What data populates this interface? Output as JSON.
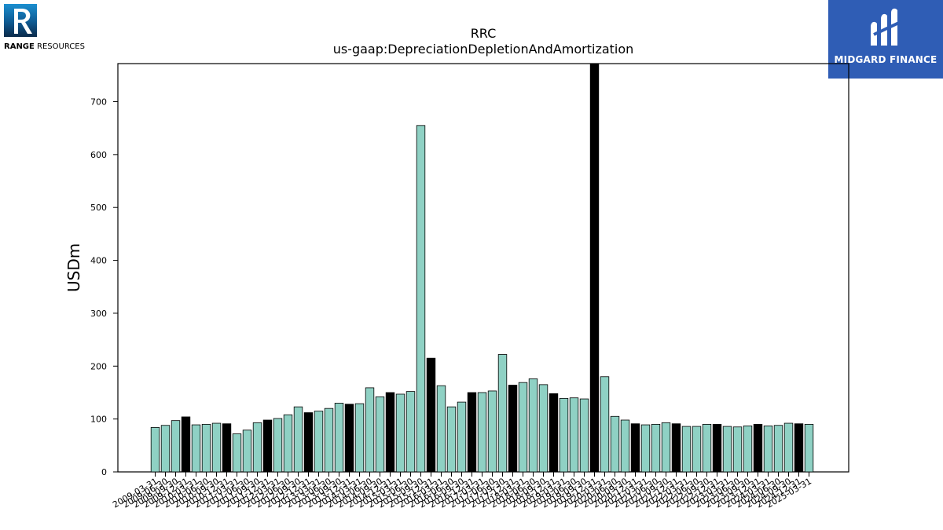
{
  "logos": {
    "left_company_bold": "RANGE",
    "left_company_rest": " RESOURCES",
    "right_brand": "MIDGARD FINANCE"
  },
  "chart_data": {
    "type": "bar",
    "title": "RRC",
    "subtitle": "us-gaap:DepreciationDepletionAndAmortization",
    "xlabel": "",
    "ylabel": "USDm",
    "ylim": [
      0,
      772
    ],
    "yticks": [
      0,
      100,
      200,
      300,
      400,
      500,
      600,
      700
    ],
    "grid": false,
    "colors": {
      "quarter": "#8fd1c4",
      "annual": "#000000",
      "edge": "#000000"
    },
    "categories": [
      "2009-03-31",
      "2009-06-30",
      "2009-09-30",
      "2009-12-31",
      "2010-03-31",
      "2010-06-30",
      "2010-09-30",
      "2010-12-31",
      "2011-03-31",
      "2011-06-30",
      "2011-09-30",
      "2011-12-31",
      "2012-03-31",
      "2012-06-30",
      "2012-09-30",
      "2012-12-31",
      "2013-03-31",
      "2013-06-30",
      "2013-09-30",
      "2013-12-31",
      "2014-03-31",
      "2014-06-30",
      "2014-09-30",
      "2014-12-31",
      "2015-03-31",
      "2015-06-30",
      "2015-09-30",
      "2015-12-31",
      "2016-03-31",
      "2016-06-30",
      "2016-09-30",
      "2016-12-31",
      "2017-03-31",
      "2017-06-30",
      "2017-09-30",
      "2017-12-31",
      "2018-03-31",
      "2018-06-30",
      "2018-09-30",
      "2018-12-31",
      "2019-03-31",
      "2019-06-30",
      "2019-09-30",
      "2019-12-31",
      "2020-03-31",
      "2020-06-30",
      "2020-09-30",
      "2020-12-31",
      "2021-03-31",
      "2021-06-30",
      "2021-09-30",
      "2021-12-31",
      "2022-03-31",
      "2022-06-30",
      "2022-09-30",
      "2022-12-31",
      "2023-03-31",
      "2023-06-30",
      "2023-09-30",
      "2023-12-31",
      "2024-03-31",
      "2024-06-30",
      "2024-09-30",
      "2024-12-31",
      "2025-03-31"
    ],
    "values": [
      84,
      88,
      97,
      104,
      89,
      90,
      92,
      91,
      72,
      79,
      93,
      98,
      101,
      108,
      123,
      112,
      115,
      120,
      130,
      128,
      129,
      159,
      142,
      150,
      147,
      152,
      655,
      215,
      163,
      123,
      132,
      150,
      150,
      153,
      222,
      164,
      169,
      176,
      165,
      148,
      139,
      140,
      138,
      772,
      180,
      105,
      98,
      91,
      89,
      90,
      93,
      91,
      86,
      86,
      90,
      90,
      86,
      85,
      87,
      90,
      87,
      88,
      92,
      91,
      90
    ],
    "annual_flags": [
      false,
      false,
      false,
      true,
      false,
      false,
      false,
      true,
      false,
      false,
      false,
      true,
      false,
      false,
      false,
      true,
      false,
      false,
      false,
      true,
      false,
      false,
      false,
      true,
      false,
      false,
      false,
      true,
      false,
      false,
      false,
      true,
      false,
      false,
      false,
      true,
      false,
      false,
      false,
      true,
      false,
      false,
      false,
      true,
      false,
      false,
      false,
      true,
      false,
      false,
      false,
      true,
      false,
      false,
      false,
      true,
      false,
      false,
      false,
      true,
      false,
      false,
      false,
      true,
      false
    ]
  }
}
